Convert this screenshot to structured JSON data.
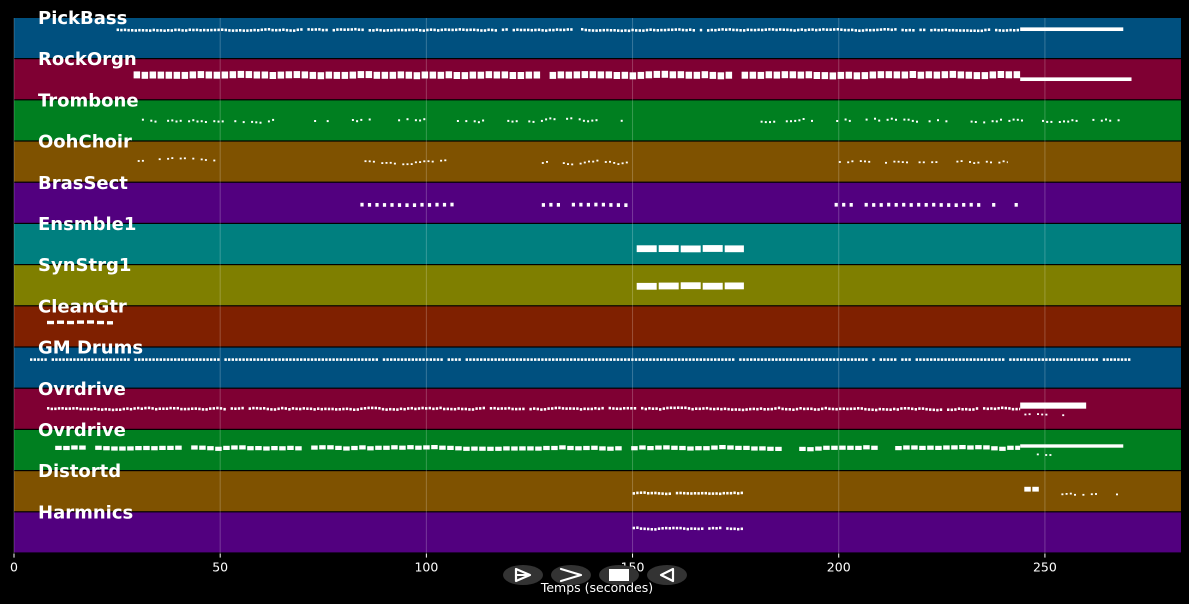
{
  "chart_data": {
    "type": "piano-roll",
    "xlabel": "Temps (secondes)",
    "xlim": [
      0,
      283
    ],
    "xticks": [
      0,
      50,
      100,
      150,
      200,
      250
    ],
    "grid": true,
    "tracks": [
      {
        "name": "PickBass",
        "color": "#00507f",
        "segments": [
          {
            "start": 24,
            "end": 244,
            "style": "dotted",
            "pitch": 0.7,
            "size": 1,
            "jitter": 0.25
          },
          {
            "start": 244,
            "end": 269,
            "style": "solid",
            "pitch": 0.72,
            "size": 1.3
          }
        ]
      },
      {
        "name": "RockOrgn",
        "color": "#7f0033",
        "segments": [
          {
            "start": 29,
            "end": 244,
            "style": "dashed",
            "pitch": 0.6,
            "size": 2.2,
            "jitter": 0.35
          },
          {
            "start": 244,
            "end": 271,
            "style": "solid",
            "pitch": 0.5,
            "size": 1.3
          }
        ]
      },
      {
        "name": "Trombone",
        "color": "#007f20",
        "segments": [
          {
            "start": 30,
            "end": 148,
            "style": "sparse",
            "pitch": 0.5,
            "size": 0.9,
            "jitter": 0.5
          },
          {
            "start": 178,
            "end": 271,
            "style": "sparse",
            "pitch": 0.5,
            "size": 0.9,
            "jitter": 0.5
          }
        ]
      },
      {
        "name": "OohChoir",
        "color": "#7f5200",
        "segments": [
          {
            "start": 30,
            "end": 50,
            "style": "sparse",
            "pitch": 0.55,
            "size": 0.8,
            "jitter": 0.5
          },
          {
            "start": 85,
            "end": 107,
            "style": "sparse",
            "pitch": 0.48,
            "size": 0.8,
            "jitter": 0.5
          },
          {
            "start": 128,
            "end": 150,
            "style": "sparse",
            "pitch": 0.48,
            "size": 0.8,
            "jitter": 0.5
          },
          {
            "start": 199,
            "end": 241,
            "style": "sparse",
            "pitch": 0.48,
            "size": 0.8,
            "jitter": 0.5
          }
        ]
      },
      {
        "name": "BrasSect",
        "color": "#52007f",
        "segments": [
          {
            "start": 84,
            "end": 107,
            "style": "gap",
            "pitch": 0.45,
            "size": 1.1,
            "jitter": 0.3
          },
          {
            "start": 128,
            "end": 151,
            "style": "gap",
            "pitch": 0.45,
            "size": 1.1,
            "jitter": 0.3
          },
          {
            "start": 199,
            "end": 244,
            "style": "gap",
            "pitch": 0.45,
            "size": 1.1,
            "jitter": 0.3
          }
        ]
      },
      {
        "name": "Ensmble1",
        "color": "#007f7f",
        "segments": [
          {
            "start": 151,
            "end": 177,
            "style": "dashed-large",
            "pitch": 0.38,
            "size": 2.6,
            "jitter": 0.3
          }
        ]
      },
      {
        "name": "SynStrg1",
        "color": "#7f7f00",
        "segments": [
          {
            "start": 151,
            "end": 177,
            "style": "dashed-large",
            "pitch": 0.48,
            "size": 2.6,
            "jitter": 0.3
          }
        ]
      },
      {
        "name": "CleanGtr",
        "color": "#7f2000",
        "segments": [
          {
            "start": 8,
            "end": 24,
            "style": "dashed-line",
            "pitch": 0.6,
            "size": 1.3,
            "jitter": 0.25
          }
        ]
      },
      {
        "name": "GM Drums",
        "color": "#00507f",
        "segments": [
          {
            "start": 3,
            "end": 271,
            "style": "dotted",
            "pitch": 0.7,
            "size": 1,
            "jitter": 0.0
          }
        ]
      },
      {
        "name": "Ovrdrive",
        "color": "#7f0033",
        "segments": [
          {
            "start": 8,
            "end": 244,
            "style": "dotted",
            "pitch": 0.5,
            "size": 1,
            "jitter": 0.35
          },
          {
            "start": 244,
            "end": 260,
            "style": "solid",
            "pitch": 0.58,
            "size": 2.2
          },
          {
            "start": 244,
            "end": 255,
            "style": "sparse",
            "pitch": 0.35,
            "size": 0.8,
            "jitter": 0.2
          }
        ]
      },
      {
        "name": "Ovrdrive",
        "color": "#007f20",
        "segments": [
          {
            "start": 10,
            "end": 244,
            "style": "dashed",
            "pitch": 0.55,
            "size": 1.3,
            "jitter": 0.4
          },
          {
            "start": 244,
            "end": 269,
            "style": "solid",
            "pitch": 0.6,
            "size": 1.2
          },
          {
            "start": 246,
            "end": 252,
            "style": "sparse",
            "pitch": 0.38,
            "size": 0.8,
            "jitter": 0.3
          }
        ]
      },
      {
        "name": "Distortd",
        "color": "#7f5200",
        "segments": [
          {
            "start": 150,
            "end": 177,
            "style": "dotted",
            "pitch": 0.45,
            "size": 1,
            "jitter": 0.25
          },
          {
            "start": 245,
            "end": 249,
            "style": "dashed",
            "pitch": 0.55,
            "size": 1.5,
            "jitter": 0.0
          },
          {
            "start": 254,
            "end": 268,
            "style": "sparse",
            "pitch": 0.42,
            "size": 0.8,
            "jitter": 0.3
          }
        ]
      },
      {
        "name": "Harmnics",
        "color": "#52007f",
        "segments": [
          {
            "start": 150,
            "end": 177,
            "style": "dotted",
            "pitch": 0.6,
            "size": 1,
            "jitter": 0.3
          }
        ]
      }
    ]
  },
  "controls": [
    {
      "icon": "step-forward-icon"
    },
    {
      "icon": "play-icon"
    },
    {
      "icon": "stop-icon"
    },
    {
      "icon": "rewind-icon"
    }
  ]
}
